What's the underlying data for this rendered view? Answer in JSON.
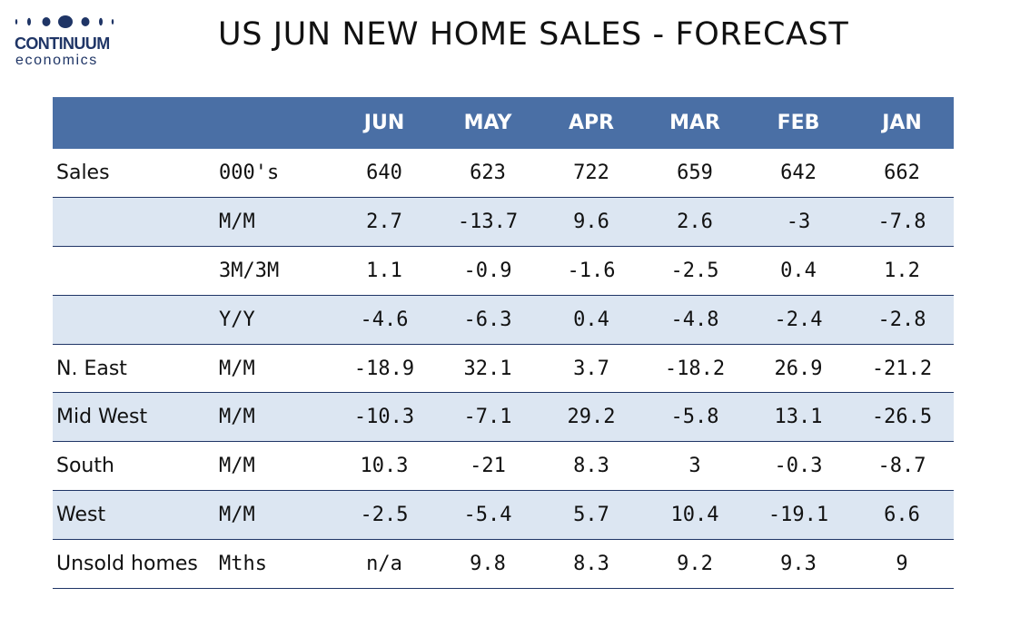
{
  "logo": {
    "brand": "CONTINUUM",
    "sub": "economics",
    "color": "#1f3566"
  },
  "page": {
    "title": "US JUN NEW HOME SALES - FORECAST"
  },
  "colors": {
    "header_bg": "#4a6fa5",
    "shaded_row": "#dce6f2",
    "rule": "#1f3566"
  },
  "table": {
    "headers": [
      "",
      "",
      "JUN",
      "MAY",
      "APR",
      "MAR",
      "FEB",
      "JAN"
    ],
    "rows": [
      {
        "label": "Sales",
        "unit": "000's",
        "values": [
          "640",
          "623",
          "722",
          "659",
          "642",
          "662"
        ],
        "shaded": false
      },
      {
        "label": "",
        "unit": "M/M",
        "values": [
          "2.7",
          "-13.7",
          "9.6",
          "2.6",
          "-3",
          "-7.8"
        ],
        "shaded": true
      },
      {
        "label": "",
        "unit": "3M/3M",
        "values": [
          "1.1",
          "-0.9",
          "-1.6",
          "-2.5",
          "0.4",
          "1.2"
        ],
        "shaded": false
      },
      {
        "label": "",
        "unit": "Y/Y",
        "values": [
          "-4.6",
          "-6.3",
          "0.4",
          "-4.8",
          "-2.4",
          "-2.8"
        ],
        "shaded": true
      },
      {
        "label": "N. East",
        "unit": "M/M",
        "values": [
          "-18.9",
          "32.1",
          "3.7",
          "-18.2",
          "26.9",
          "-21.2"
        ],
        "shaded": false
      },
      {
        "label": "Mid West",
        "unit": "M/M",
        "values": [
          "-10.3",
          "-7.1",
          "29.2",
          "-5.8",
          "13.1",
          "-26.5"
        ],
        "shaded": true
      },
      {
        "label": "South",
        "unit": "M/M",
        "values": [
          "10.3",
          "-21",
          "8.3",
          "3",
          "-0.3",
          "-8.7"
        ],
        "shaded": false
      },
      {
        "label": "West",
        "unit": "M/M",
        "values": [
          "-2.5",
          "-5.4",
          "5.7",
          "10.4",
          "-19.1",
          "6.6"
        ],
        "shaded": true
      },
      {
        "label": "Unsold homes",
        "unit": "Mths",
        "values": [
          "n/a",
          "9.8",
          "8.3",
          "9.2",
          "9.3",
          "9"
        ],
        "shaded": false
      }
    ]
  }
}
